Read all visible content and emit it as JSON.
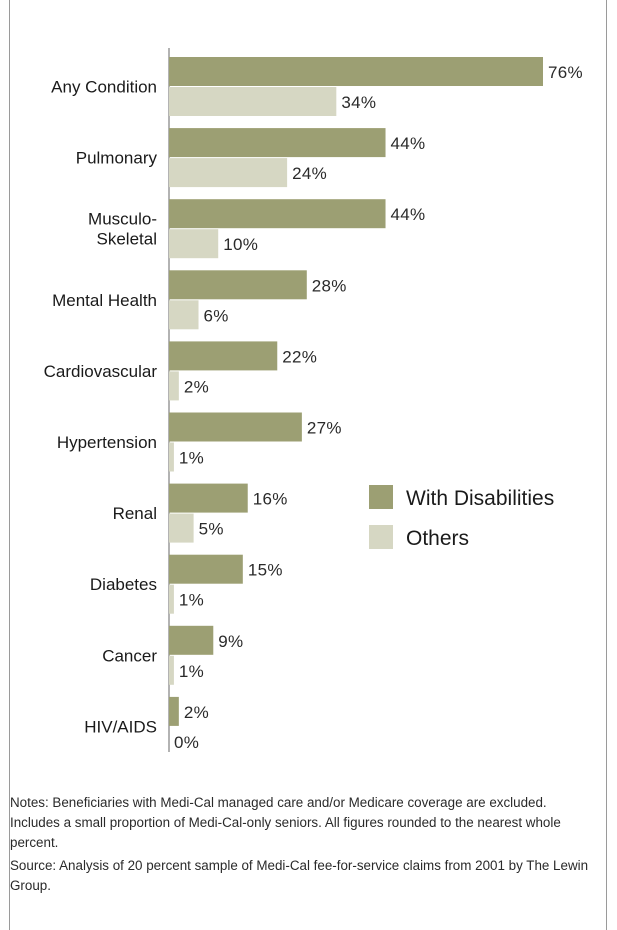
{
  "chart_data": {
    "type": "bar",
    "orientation": "horizontal",
    "title": "",
    "categories": [
      [
        "Any Condition"
      ],
      [
        "Pulmonary"
      ],
      [
        "Musculo-",
        "Skeletal"
      ],
      [
        "Mental Health"
      ],
      [
        "Cardiovascular"
      ],
      [
        "Hypertension"
      ],
      [
        "Renal"
      ],
      [
        "Diabetes"
      ],
      [
        "Cancer"
      ],
      [
        "HIV/AIDS"
      ]
    ],
    "series": [
      {
        "name": "With Disabilities",
        "color": "#9c9f73",
        "values": [
          76,
          44,
          44,
          28,
          22,
          27,
          16,
          15,
          9,
          2
        ]
      },
      {
        "name": "Others",
        "color": "#d6d7c3",
        "values": [
          34,
          24,
          10,
          6,
          2,
          1,
          5,
          1,
          1,
          0
        ]
      }
    ],
    "value_suffix": "%",
    "xlim": [
      0,
      100
    ],
    "grid": false,
    "legend_position": "right"
  },
  "notes": "Notes: Beneficiaries with Medi-Cal managed care and/or Medicare coverage are excluded. Includes a small proportion of Medi-Cal-only seniors. All figures rounded to the nearest whole percent.",
  "source": "Source: Analysis of 20 percent sample of Medi-Cal fee-for-service claims from 2001 by The Lewin Group."
}
